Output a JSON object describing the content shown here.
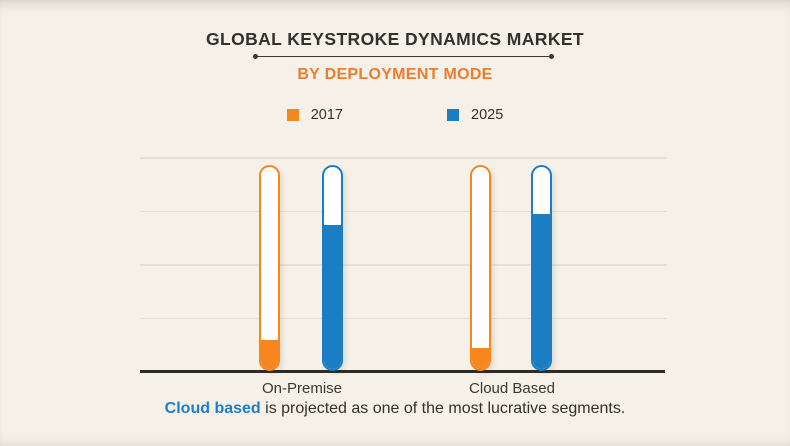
{
  "header": {
    "title": "GLOBAL KEYSTROKE DYNAMICS MARKET",
    "subtitle": "BY DEPLOYMENT MODE"
  },
  "legend": [
    {
      "label": "2017",
      "color": "#f6871f"
    },
    {
      "label": "2025",
      "color": "#1b7ec5"
    }
  ],
  "chart_data": {
    "type": "bar",
    "title": "Global Keystroke Dynamics Market by Deployment Mode",
    "categories": [
      "On-Premise",
      "Cloud Based"
    ],
    "series": [
      {
        "name": "2017",
        "color": "#f6871f",
        "values": [
          14,
          10
        ]
      },
      {
        "name": "2025",
        "color": "#1b7ec5",
        "values": [
          70,
          75
        ]
      }
    ],
    "xlabel": "",
    "ylabel": "",
    "ylim": [
      0,
      100
    ],
    "value_unit": "percent of bar track, estimated (no numeric axis labels shown)",
    "grid": true,
    "gridline_count": 4,
    "legend_position": "top",
    "bar_style": "white capsule track outlined in series color, filled from bottom"
  },
  "caption": {
    "highlight": "Cloud based",
    "rest": " is projected as one of the most lucrative segments."
  },
  "colors": {
    "background": "#f5f1e8",
    "accent_orange": "#f6871f",
    "subtitle_orange": "#ed7d2b",
    "accent_blue": "#1b7ec5",
    "caption_blue": "#1c7fc7",
    "text_dark": "#33312c",
    "gridline": "#e4e0d6",
    "axis": "#2e2c28"
  }
}
